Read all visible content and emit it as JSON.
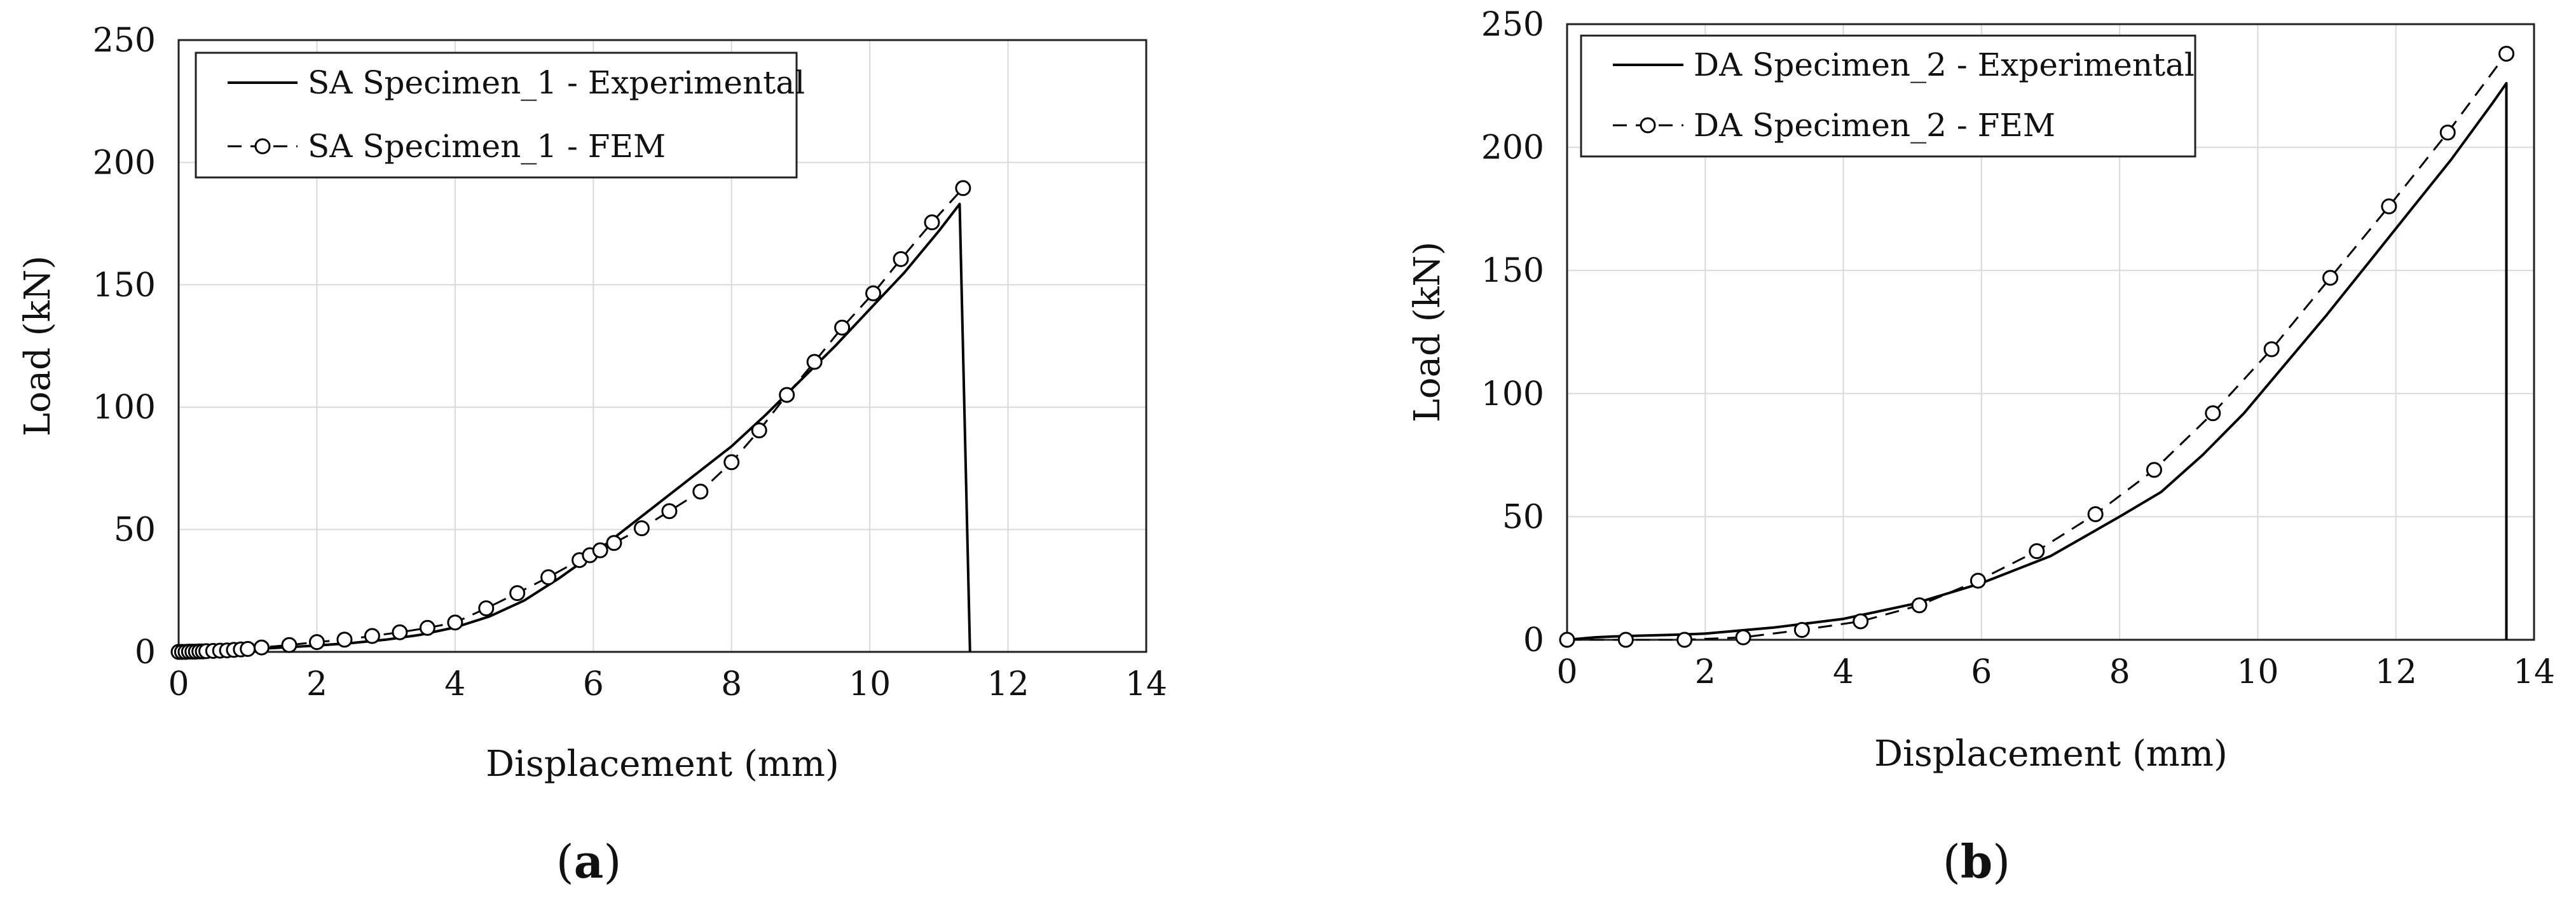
{
  "chart_data": [
    {
      "type": "line",
      "panel_label": "a",
      "xlabel": "Displacement (mm)",
      "ylabel": "Load (kN)",
      "xlim": [
        0,
        14
      ],
      "ylim": [
        0,
        250
      ],
      "xticks": [
        0,
        2,
        4,
        6,
        8,
        10,
        12,
        14
      ],
      "yticks": [
        0,
        50,
        100,
        150,
        200,
        250
      ],
      "grid": true,
      "legend_position": "top-left",
      "series": [
        {
          "name": "SA Specimen_1 - Experimental",
          "style": "solid",
          "color": "#000000",
          "x": [
            0,
            0.5,
            1,
            1.5,
            2,
            2.5,
            3,
            3.5,
            4,
            4.5,
            5,
            5.5,
            6,
            6.5,
            7,
            7.5,
            8,
            8.5,
            9,
            9.5,
            10,
            10.5,
            11,
            11.3,
            11.45
          ],
          "y": [
            0,
            0.5,
            1,
            1.8,
            2.6,
            3.6,
            5,
            7,
            10,
            14.5,
            21,
            30,
            40,
            51,
            62,
            73,
            84,
            97,
            111,
            125,
            140,
            155,
            172,
            183,
            0
          ]
        },
        {
          "name": "SA Specimen_1 - FEM",
          "style": "dashed-circle",
          "color": "#000000",
          "x": [
            0,
            0.05,
            0.1,
            0.15,
            0.2,
            0.25,
            0.3,
            0.35,
            0.4,
            0.5,
            0.6,
            0.7,
            0.8,
            0.9,
            1.0,
            1.2,
            1.6,
            2.0,
            2.4,
            2.8,
            3.2,
            3.6,
            4.0,
            4.45,
            4.9,
            5.35,
            5.8,
            5.95,
            6.1,
            6.3,
            6.7,
            7.1,
            7.55,
            8.0,
            8.4,
            8.8,
            9.2,
            9.6,
            10.05,
            10.45,
            10.9,
            11.35
          ],
          "y": [
            0,
            0,
            0,
            0.1,
            0.1,
            0.1,
            0.2,
            0.2,
            0.3,
            0.4,
            0.5,
            0.6,
            0.8,
            1.0,
            1.2,
            1.8,
            2.8,
            4,
            5,
            6.5,
            8,
            9.8,
            12,
            17.8,
            24,
            30.5,
            37.5,
            39.5,
            41.5,
            44.5,
            50.5,
            57.5,
            65.5,
            77.5,
            90.5,
            105,
            118.5,
            132.5,
            146.5,
            160.5,
            175.5,
            189.5
          ]
        }
      ]
    },
    {
      "type": "line",
      "panel_label": "b",
      "xlabel": "Displacement (mm)",
      "ylabel": "Load (kN)",
      "xlim": [
        0,
        14
      ],
      "ylim": [
        0,
        250
      ],
      "xticks": [
        0,
        2,
        4,
        6,
        8,
        10,
        12,
        14
      ],
      "yticks": [
        0,
        50,
        100,
        150,
        200,
        250
      ],
      "grid": true,
      "legend_position": "top-left",
      "series": [
        {
          "name": "DA Specimen_2 - Experimental",
          "style": "solid",
          "color": "#000000",
          "x": [
            0,
            0.4,
            0.8,
            1.5,
            2,
            3,
            4,
            5,
            6,
            7,
            8,
            8.6,
            9.2,
            9.8,
            10.4,
            11,
            11.6,
            12.2,
            12.8,
            13.4,
            13.6,
            13.6
          ],
          "y": [
            0,
            1,
            1.5,
            2,
            2.5,
            5,
            8.5,
            14.5,
            23,
            34,
            50,
            60,
            75,
            92,
            112,
            132,
            153,
            174,
            195,
            218,
            226,
            0
          ]
        },
        {
          "name": "DA Specimen_2 - FEM",
          "style": "dashed-circle",
          "color": "#000000",
          "x": [
            0,
            0.85,
            1.7,
            2.55,
            3.4,
            4.25,
            5.1,
            5.95,
            6.8,
            7.65,
            8.5,
            9.35,
            10.2,
            11.05,
            11.9,
            12.75,
            13.6
          ],
          "y": [
            0,
            0,
            0,
            1,
            4,
            7.5,
            14,
            24,
            36,
            51,
            69,
            92,
            118,
            147,
            176,
            206,
            238
          ]
        }
      ]
    }
  ]
}
